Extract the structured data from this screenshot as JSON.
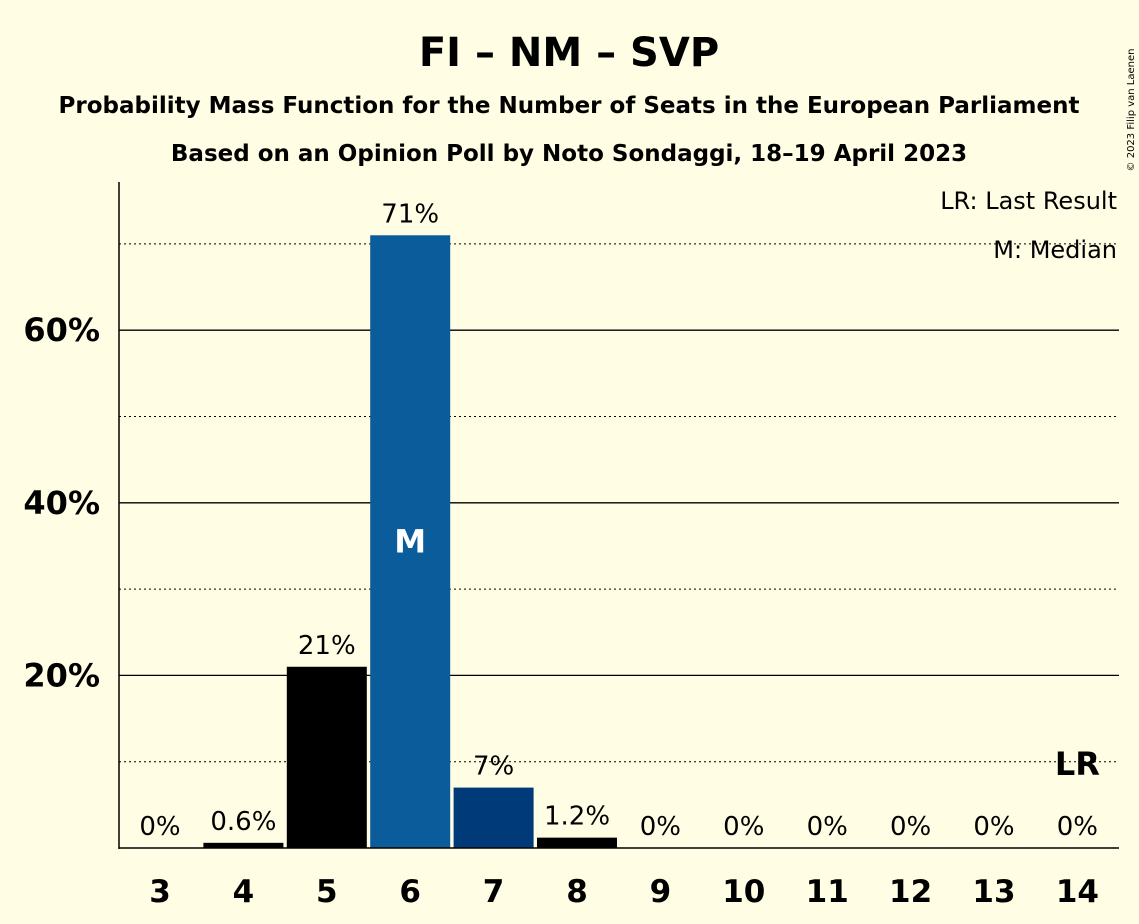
{
  "title": "FI – NM – SVP",
  "subtitle1": "Probability Mass Function for the Number of Seats in the European Parliament",
  "subtitle2": "Based on an Opinion Poll by Noto Sondaggi, 18–19 April 2023",
  "copyright": "© 2023 Filip van Laenen",
  "legend": {
    "last_result": "LR: Last Result",
    "median": "M: Median"
  },
  "markers": {
    "median": "M",
    "last_result": "LR"
  },
  "colors": {
    "background": "#fffde3",
    "black": "#000000",
    "blue": "#0b5c9a",
    "dark_blue": "#003a78"
  },
  "chart_data": {
    "type": "bar",
    "categories": [
      "3",
      "4",
      "5",
      "6",
      "7",
      "8",
      "9",
      "10",
      "11",
      "12",
      "13",
      "14"
    ],
    "values": [
      0,
      0.6,
      21,
      71,
      7,
      1.2,
      0,
      0,
      0,
      0,
      0,
      0
    ],
    "value_labels": [
      "0%",
      "0.6%",
      "21%",
      "71%",
      "7%",
      "1.2%",
      "0%",
      "0%",
      "0%",
      "0%",
      "0%",
      "0%"
    ],
    "bar_colors": [
      "#000000",
      "#000000",
      "#000000",
      "#0b5c9a",
      "#003a78",
      "#000000",
      "#000000",
      "#000000",
      "#000000",
      "#000000",
      "#000000",
      "#000000"
    ],
    "median_category": "6",
    "last_result_category": "14",
    "y_ticks": [
      20,
      40,
      60
    ],
    "y_tick_labels": [
      "20%",
      "40%",
      "60%"
    ],
    "minor_gridlines": [
      10,
      30,
      50,
      70
    ],
    "ylim": [
      0,
      77
    ],
    "xlabel": "",
    "ylabel": ""
  }
}
